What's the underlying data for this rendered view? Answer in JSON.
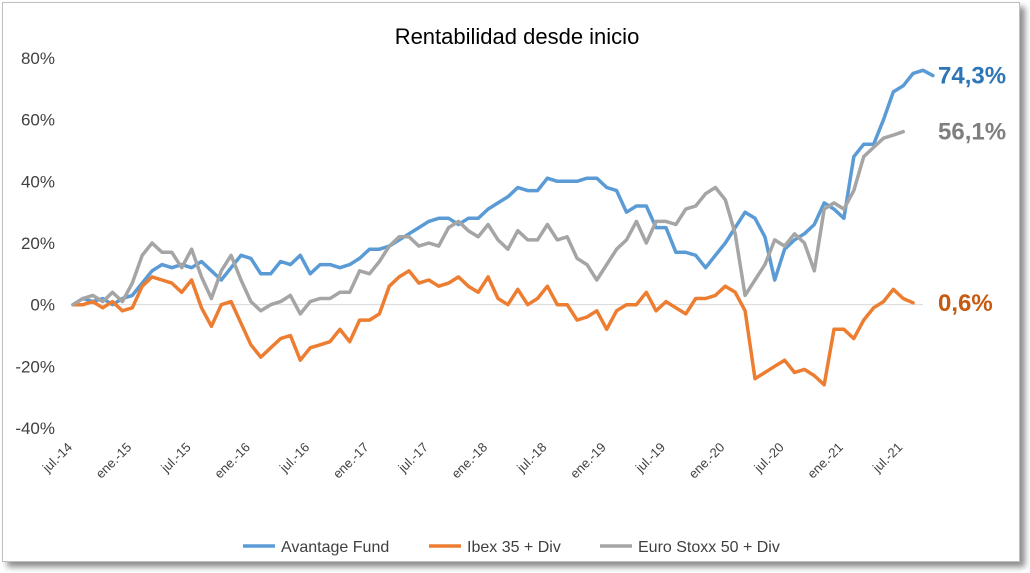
{
  "chart_data": {
    "type": "line",
    "title": "Rentabilidad desde inicio",
    "xlabel": "",
    "ylabel": "",
    "ylim": [
      -40,
      80
    ],
    "y_ticks": [
      "80%",
      "60%",
      "40%",
      "20%",
      "0%",
      "-20%",
      "-40%"
    ],
    "y_tick_values": [
      80,
      60,
      40,
      20,
      0,
      -20,
      -40
    ],
    "x_tick_labels": [
      "jul.-14",
      "ene.-15",
      "jul.-15",
      "ene.-16",
      "jul.-16",
      "ene.-17",
      "jul.-17",
      "ene.-18",
      "jul.-18",
      "ene.-19",
      "jul.-19",
      "ene.-20",
      "jul.-20",
      "ene.-21",
      "jul.-21"
    ],
    "x_tick_months": [
      0,
      6,
      12,
      18,
      24,
      30,
      36,
      42,
      48,
      54,
      60,
      66,
      72,
      78,
      84
    ],
    "grid": false,
    "legend_position": "bottom",
    "series": [
      {
        "name": "Avantage Fund",
        "color": "#5b9bd5",
        "end_label": "74,3%",
        "end_label_color": "#2e75b6",
        "values": [
          0,
          2,
          1,
          2,
          0,
          2,
          3,
          7,
          11,
          13,
          12,
          13,
          12,
          14,
          11,
          8,
          12,
          16,
          15,
          10,
          10,
          14,
          13,
          16,
          10,
          13,
          13,
          12,
          13,
          15,
          18,
          18,
          19,
          21,
          23,
          25,
          27,
          28,
          28,
          26,
          28,
          28,
          31,
          33,
          35,
          38,
          37,
          37,
          41,
          40,
          40,
          40,
          41,
          41,
          38,
          37,
          30,
          32,
          32,
          25,
          25,
          17,
          17,
          16,
          12,
          16,
          20,
          25,
          30,
          28,
          22,
          8,
          18,
          21,
          23,
          26,
          33,
          31,
          28,
          48,
          52,
          52,
          60,
          69,
          71,
          75,
          76,
          74.3
        ]
      },
      {
        "name": "Ibex 35 + Div",
        "color": "#ed7d31",
        "end_label": "0,6%",
        "end_label_color": "#c55a11",
        "values": [
          0,
          0,
          1,
          -1,
          1,
          -2,
          -1,
          6,
          9,
          8,
          7,
          4,
          8,
          -1,
          -7,
          0,
          1,
          -6,
          -13,
          -17,
          -14,
          -11,
          -10,
          -18,
          -14,
          -13,
          -12,
          -8,
          -12,
          -5,
          -5,
          -3,
          6,
          9,
          11,
          7,
          8,
          6,
          7,
          9,
          6,
          4,
          9,
          2,
          0,
          5,
          0,
          2,
          6,
          0,
          0,
          -5,
          -4,
          -2,
          -8,
          -2,
          0,
          0,
          4,
          -2,
          1,
          -1,
          -3,
          2,
          2,
          3,
          6,
          4,
          -2,
          -24,
          -22,
          -20,
          -18,
          -22,
          -21,
          -23,
          -26,
          -8,
          -8,
          -11,
          -5,
          -1,
          1,
          5,
          2,
          0.6
        ]
      },
      {
        "name": "Euro Stoxx 50 + Div",
        "color": "#a5a5a5",
        "end_label": "56,1%",
        "end_label_color": "#7f7f7f",
        "values": [
          0,
          2,
          3,
          1,
          4,
          1,
          7,
          16,
          20,
          17,
          17,
          12,
          18,
          9,
          2,
          11,
          16,
          8,
          1,
          -2,
          0,
          1,
          3,
          -3,
          1,
          2,
          2,
          4,
          4,
          11,
          10,
          14,
          19,
          22,
          22,
          19,
          20,
          19,
          25,
          27,
          24,
          22,
          26,
          21,
          18,
          24,
          21,
          21,
          26,
          21,
          22,
          15,
          13,
          8,
          13,
          18,
          21,
          27,
          20,
          27,
          27,
          26,
          31,
          32,
          36,
          38,
          34,
          23,
          3,
          8,
          13,
          21,
          19,
          23,
          20,
          11,
          31,
          33,
          31,
          37,
          48,
          51,
          54,
          55,
          56.1
        ]
      }
    ]
  }
}
